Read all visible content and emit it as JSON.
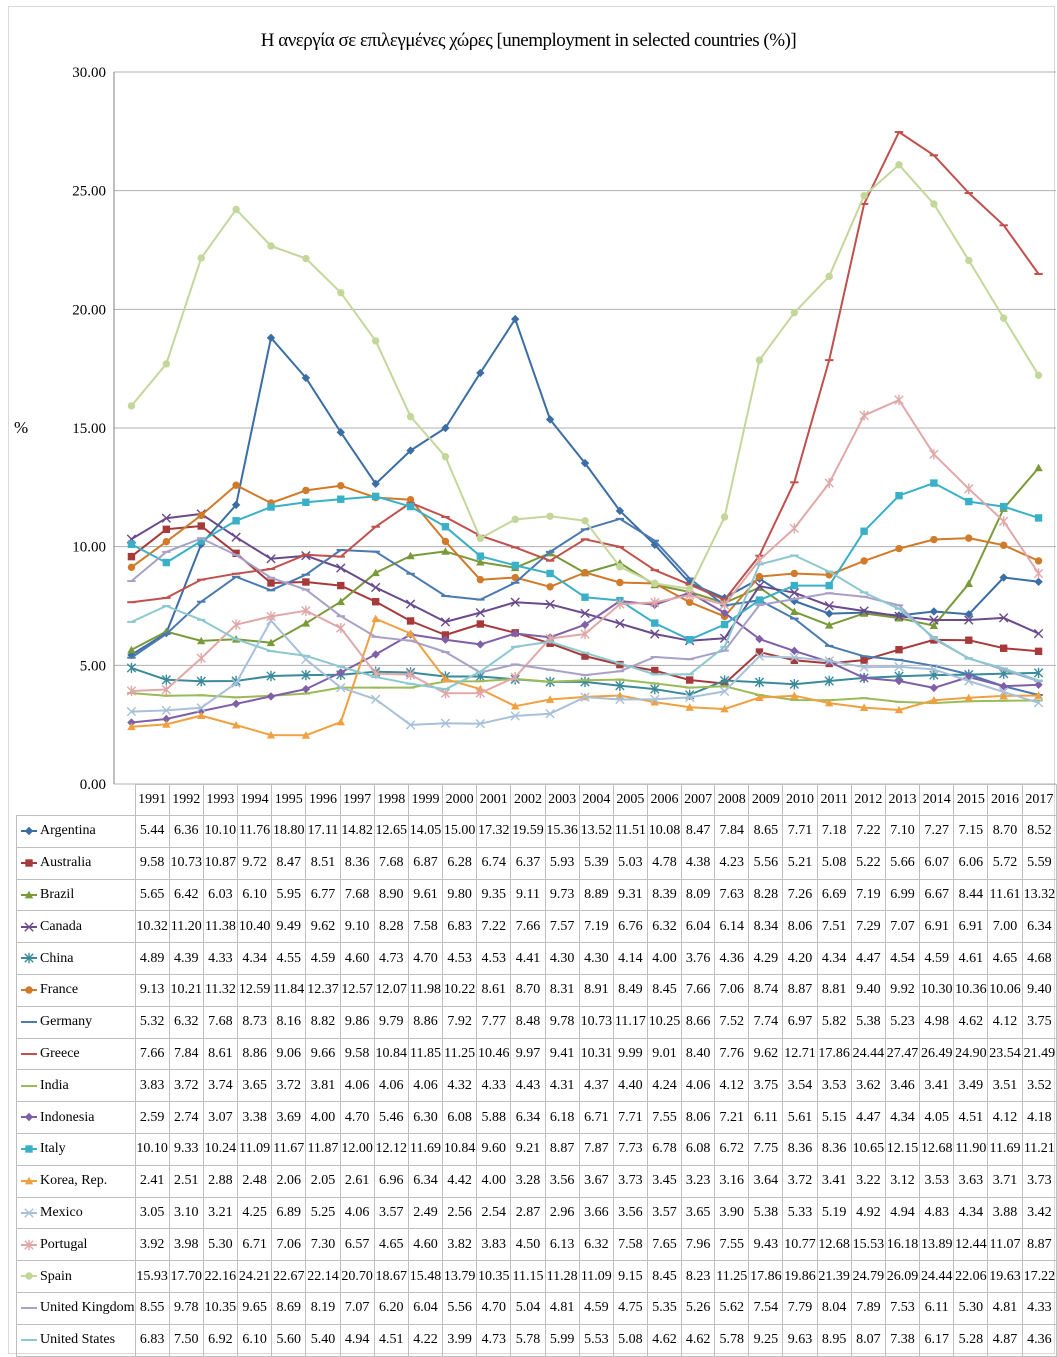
{
  "chart_data": {
    "type": "line",
    "title": "Η ανεργία σε επιλεγμένες χώρες [unemployment in selected countries (%)]",
    "xlabel": "",
    "ylabel": "%",
    "ylim": [
      0,
      30
    ],
    "yticks": [
      "0.00",
      "5.00",
      "10.00",
      "15.00",
      "20.00",
      "25.00",
      "30.00"
    ],
    "grid": "horizontal",
    "legend": "data-table-below",
    "categories": [
      "1991",
      "1992",
      "1993",
      "1994",
      "1995",
      "1996",
      "1997",
      "1998",
      "1999",
      "2000",
      "2001",
      "2002",
      "2003",
      "2004",
      "2005",
      "2006",
      "2007",
      "2008",
      "2009",
      "2010",
      "2011",
      "2012",
      "2013",
      "2014",
      "2015",
      "2016",
      "2017"
    ],
    "series": [
      {
        "name": "Argentina",
        "color": "#3a6ea5",
        "marker": "diamond",
        "values": [
          5.44,
          6.36,
          10.1,
          11.76,
          18.8,
          17.11,
          14.82,
          12.65,
          14.05,
          15.0,
          17.32,
          19.59,
          15.36,
          13.52,
          11.51,
          10.08,
          8.47,
          7.84,
          8.65,
          7.71,
          7.18,
          7.22,
          7.1,
          7.27,
          7.15,
          8.7,
          8.52
        ]
      },
      {
        "name": "Australia",
        "color": "#a63a3a",
        "marker": "square",
        "values": [
          9.58,
          10.73,
          10.87,
          9.72,
          8.47,
          8.51,
          8.36,
          7.68,
          6.87,
          6.28,
          6.74,
          6.37,
          5.93,
          5.39,
          5.03,
          4.78,
          4.38,
          4.23,
          5.56,
          5.21,
          5.08,
          5.22,
          5.66,
          6.07,
          6.06,
          5.72,
          5.59
        ]
      },
      {
        "name": "Brazil",
        "color": "#7a9a3a",
        "marker": "triangle",
        "values": [
          5.65,
          6.42,
          6.03,
          6.1,
          5.95,
          6.77,
          7.68,
          8.9,
          9.61,
          9.8,
          9.35,
          9.11,
          9.73,
          8.89,
          9.31,
          8.39,
          8.09,
          7.63,
          8.28,
          7.26,
          6.69,
          7.19,
          6.99,
          6.67,
          8.44,
          11.61,
          13.32
        ]
      },
      {
        "name": "Canada",
        "color": "#6a4a8a",
        "marker": "x",
        "values": [
          10.32,
          11.2,
          11.38,
          10.4,
          9.49,
          9.62,
          9.1,
          8.28,
          7.58,
          6.83,
          7.22,
          7.66,
          7.57,
          7.19,
          6.76,
          6.32,
          6.04,
          6.14,
          8.34,
          8.06,
          7.51,
          7.29,
          7.07,
          6.91,
          6.91,
          7.0,
          6.34
        ]
      },
      {
        "name": "China",
        "color": "#3a8a9a",
        "marker": "star",
        "values": [
          4.89,
          4.39,
          4.33,
          4.34,
          4.55,
          4.59,
          4.6,
          4.73,
          4.7,
          4.53,
          4.53,
          4.41,
          4.3,
          4.3,
          4.14,
          4.0,
          3.76,
          4.36,
          4.29,
          4.2,
          4.34,
          4.47,
          4.54,
          4.59,
          4.61,
          4.65,
          4.68
        ]
      },
      {
        "name": "France",
        "color": "#d07a2a",
        "marker": "circle",
        "values": [
          9.13,
          10.21,
          11.32,
          12.59,
          11.84,
          12.37,
          12.57,
          12.07,
          11.98,
          10.22,
          8.61,
          8.7,
          8.31,
          8.91,
          8.49,
          8.45,
          7.66,
          7.06,
          8.74,
          8.87,
          8.81,
          9.4,
          9.92,
          10.3,
          10.36,
          10.06,
          9.4
        ]
      },
      {
        "name": "Germany",
        "color": "#4a7ab0",
        "marker": "dash",
        "values": [
          5.32,
          6.32,
          7.68,
          8.73,
          8.16,
          8.82,
          9.86,
          9.79,
          8.86,
          7.92,
          7.77,
          8.48,
          9.78,
          10.73,
          11.17,
          10.25,
          8.66,
          7.52,
          7.74,
          6.97,
          5.82,
          5.38,
          5.23,
          4.98,
          4.62,
          4.12,
          3.75
        ]
      },
      {
        "name": "Greece",
        "color": "#c0504d",
        "marker": "dash",
        "values": [
          7.66,
          7.84,
          8.61,
          8.86,
          9.06,
          9.66,
          9.58,
          10.84,
          11.85,
          11.25,
          10.46,
          9.97,
          9.41,
          10.31,
          9.99,
          9.01,
          8.4,
          7.76,
          9.62,
          12.71,
          17.86,
          24.44,
          27.47,
          26.49,
          24.9,
          23.54,
          21.49
        ]
      },
      {
        "name": "India",
        "color": "#9bbb59",
        "marker": "dash",
        "values": [
          3.83,
          3.72,
          3.74,
          3.65,
          3.72,
          3.81,
          4.06,
          4.06,
          4.06,
          4.32,
          4.33,
          4.43,
          4.31,
          4.37,
          4.4,
          4.24,
          4.06,
          4.12,
          3.75,
          3.54,
          3.53,
          3.62,
          3.46,
          3.41,
          3.49,
          3.51,
          3.52
        ]
      },
      {
        "name": "Indonesia",
        "color": "#7f5fa8",
        "marker": "diamond",
        "values": [
          2.59,
          2.74,
          3.07,
          3.38,
          3.69,
          4.0,
          4.7,
          5.46,
          6.3,
          6.08,
          5.88,
          6.34,
          6.18,
          6.71,
          7.71,
          7.55,
          8.06,
          7.21,
          6.11,
          5.61,
          5.15,
          4.47,
          4.34,
          4.05,
          4.51,
          4.12,
          4.18
        ]
      },
      {
        "name": "Italy",
        "color": "#3ab0c8",
        "marker": "square",
        "values": [
          10.1,
          9.33,
          10.24,
          11.09,
          11.67,
          11.87,
          12.0,
          12.12,
          11.69,
          10.84,
          9.6,
          9.21,
          8.87,
          7.87,
          7.73,
          6.78,
          6.08,
          6.72,
          7.75,
          8.36,
          8.36,
          10.65,
          12.15,
          12.68,
          11.9,
          11.69,
          11.21
        ]
      },
      {
        "name": "Korea, Rep.",
        "color": "#f0a040",
        "marker": "triangle",
        "values": [
          2.41,
          2.51,
          2.88,
          2.48,
          2.06,
          2.05,
          2.61,
          6.96,
          6.34,
          4.42,
          4.0,
          3.28,
          3.56,
          3.67,
          3.73,
          3.45,
          3.23,
          3.16,
          3.64,
          3.72,
          3.41,
          3.22,
          3.12,
          3.53,
          3.63,
          3.71,
          3.73
        ]
      },
      {
        "name": "Mexico",
        "color": "#a8c0d8",
        "marker": "x",
        "values": [
          3.05,
          3.1,
          3.21,
          4.25,
          6.89,
          5.25,
          4.06,
          3.57,
          2.49,
          2.56,
          2.54,
          2.87,
          2.96,
          3.66,
          3.56,
          3.57,
          3.65,
          3.9,
          5.38,
          5.33,
          5.19,
          4.92,
          4.94,
          4.83,
          4.34,
          3.88,
          3.42
        ]
      },
      {
        "name": "Portugal",
        "color": "#e0a8a8",
        "marker": "star",
        "values": [
          3.92,
          3.98,
          5.3,
          6.71,
          7.06,
          7.3,
          6.57,
          4.65,
          4.6,
          3.82,
          3.83,
          4.5,
          6.13,
          6.32,
          7.58,
          7.65,
          7.96,
          7.55,
          9.43,
          10.77,
          12.68,
          15.53,
          16.18,
          13.89,
          12.44,
          11.07,
          8.87
        ]
      },
      {
        "name": "Spain",
        "color": "#c4d79b",
        "marker": "circle",
        "values": [
          15.93,
          17.7,
          22.16,
          24.21,
          22.67,
          22.14,
          20.7,
          18.67,
          15.48,
          13.79,
          10.35,
          11.15,
          11.28,
          11.09,
          9.15,
          8.45,
          8.23,
          11.25,
          17.86,
          19.86,
          21.39,
          24.79,
          26.09,
          24.44,
          22.06,
          19.63,
          17.22
        ]
      },
      {
        "name": "United Kingdom",
        "color": "#a9a0c8",
        "marker": "dash",
        "values": [
          8.55,
          9.78,
          10.35,
          9.65,
          8.69,
          8.19,
          7.07,
          6.2,
          6.04,
          5.56,
          4.7,
          5.04,
          4.81,
          4.59,
          4.75,
          5.35,
          5.26,
          5.62,
          7.54,
          7.79,
          8.04,
          7.89,
          7.53,
          6.11,
          5.3,
          4.81,
          4.33
        ]
      },
      {
        "name": "United States",
        "color": "#8cc8d0",
        "marker": "dash",
        "values": [
          6.83,
          7.5,
          6.92,
          6.1,
          5.6,
          5.4,
          4.94,
          4.51,
          4.22,
          3.99,
          4.73,
          5.78,
          5.99,
          5.53,
          5.08,
          4.62,
          4.62,
          5.78,
          9.25,
          9.63,
          8.95,
          8.07,
          7.38,
          6.17,
          5.28,
          4.87,
          4.36
        ]
      }
    ]
  }
}
